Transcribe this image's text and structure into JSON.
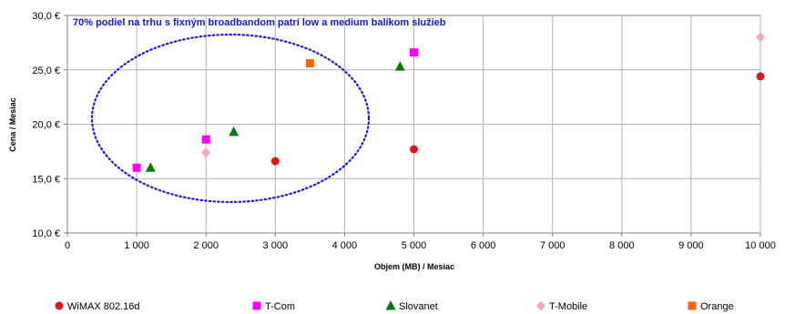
{
  "chart_data": {
    "type": "scatter",
    "title": "",
    "xlabel": "Objem (MB) / Mesiac",
    "ylabel": "Cena / Mesiac",
    "xlim": [
      0,
      10000
    ],
    "ylim": [
      10,
      30
    ],
    "x_ticks": [
      0,
      1000,
      2000,
      3000,
      4000,
      5000,
      6000,
      7000,
      8000,
      9000,
      10000
    ],
    "x_tick_labels": [
      "0",
      "1 000",
      "2 000",
      "3 000",
      "4 000",
      "5 000",
      "6 000",
      "7 000",
      "8 000",
      "9 000",
      "10 000"
    ],
    "y_ticks": [
      10,
      15,
      20,
      25,
      30
    ],
    "y_tick_labels": [
      "10,0 €",
      "15,0 €",
      "20,0 €",
      "25,0 €",
      "30,0 €"
    ],
    "grid": true,
    "legend_position": "bottom",
    "annotation": "70% podiel na trhu s fixným broadbandom patrí low a medium balíkom služieb",
    "series": [
      {
        "name": "WiMAX 802.16d",
        "marker": "circle",
        "color": "#e0161b",
        "points": [
          [
            3000,
            16.6
          ],
          [
            5000,
            17.7
          ],
          [
            10000,
            24.4
          ]
        ]
      },
      {
        "name": "T-Com",
        "marker": "square",
        "color": "#ff00ff",
        "points": [
          [
            1000,
            16.0
          ],
          [
            2000,
            18.6
          ],
          [
            5000,
            26.6
          ]
        ]
      },
      {
        "name": "Slovanet",
        "marker": "triangle",
        "color": "#0a7a0a",
        "points": [
          [
            1200,
            16.0
          ],
          [
            2400,
            19.3
          ],
          [
            4800,
            25.3
          ]
        ]
      },
      {
        "name": "T-Mobile",
        "marker": "diamond",
        "color": "#f4a6c8",
        "points": [
          [
            2000,
            17.4
          ],
          [
            10000,
            28.0
          ]
        ]
      },
      {
        "name": "Orange",
        "marker": "square",
        "color": "#ff6600",
        "points": [
          [
            3500,
            25.6
          ]
        ]
      }
    ]
  }
}
